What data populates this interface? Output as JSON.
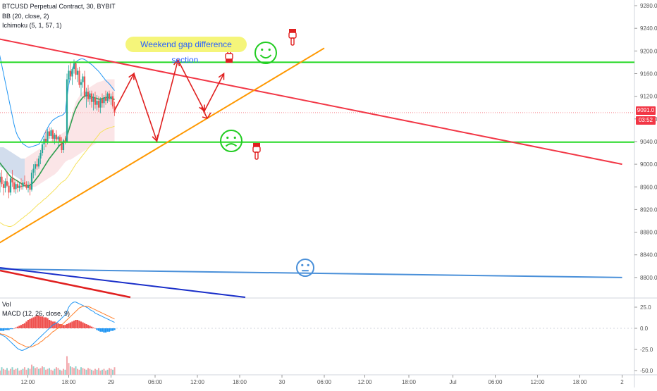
{
  "main_chart": {
    "legend": [
      {
        "label": "BTCUSD Perpetual Contract, 30, BYBIT"
      },
      {
        "label": "BB (20, close, 2)"
      },
      {
        "label": "Ichimoku (5, 1, 57, 1)"
      }
    ],
    "annotation": "Weekend gap difference section.",
    "current_price_label": "9091.0",
    "countdown_label": "03:52"
  },
  "sub_chart": {
    "legend": [
      {
        "label": "Vol"
      },
      {
        "label": "MACD (12, 26, close, 9)"
      }
    ]
  },
  "chart_data": [
    {
      "type": "candlestick",
      "symbol": "BTCUSD Perpetual Contract",
      "interval": "30",
      "exchange": "BYBIT",
      "yaxis_ticks": [
        9280.0,
        9240.0,
        9200.0,
        9160.0,
        9120.0,
        9080.0,
        9040.0,
        9000.0,
        8960.0,
        8920.0,
        8880.0,
        8840.0,
        8800.0
      ],
      "yaxis_tick_labels": [
        "9280.0",
        "9240.0",
        "9200.0",
        "9160.0",
        "9120.0",
        "9080.0",
        "9040.0",
        "9000.0",
        "8960.0",
        "8920.0",
        "8880.0",
        "8840.0",
        "8800.0"
      ],
      "ylim": [
        8765,
        9290
      ],
      "xaxis_tick_labels": [
        "12:00",
        "18:00",
        "29",
        "06:00",
        "12:00",
        "18:00",
        "30",
        "06:00",
        "12:00",
        "18:00",
        "Jul",
        "06:00",
        "12:00",
        "18:00",
        "2"
      ],
      "xaxis_tick_index": [
        17.8,
        41,
        65,
        90,
        114,
        138,
        162,
        186,
        209,
        234,
        259,
        283,
        307,
        331,
        355
      ],
      "current_price": 9091.0,
      "candles_ohlc": [
        [
          9006,
          9020,
          8975,
          8990
        ],
        [
          8990,
          9000,
          8955,
          8968
        ],
        [
          8968,
          8985,
          8950,
          8978
        ],
        [
          8978,
          8990,
          8960,
          8965
        ],
        [
          8965,
          8972,
          8945,
          8958
        ],
        [
          8958,
          8975,
          8950,
          8970
        ],
        [
          8970,
          8985,
          8960,
          8962
        ],
        [
          8962,
          8968,
          8940,
          8950
        ],
        [
          8950,
          8980,
          8945,
          8975
        ],
        [
          8975,
          8990,
          8960,
          8968
        ],
        [
          8968,
          8975,
          8950,
          8956
        ],
        [
          8956,
          8970,
          8948,
          8965
        ],
        [
          8965,
          8972,
          8950,
          8958
        ],
        [
          8958,
          8968,
          8952,
          8962
        ],
        [
          8962,
          8975,
          8955,
          8960
        ],
        [
          8960,
          8972,
          8955,
          8968
        ],
        [
          8968,
          8980,
          8960,
          8965
        ],
        [
          8965,
          8970,
          8955,
          8958
        ],
        [
          8958,
          8970,
          8950,
          8962
        ],
        [
          8962,
          8968,
          8945,
          8955
        ],
        [
          8955,
          8990,
          8952,
          8985
        ],
        [
          8985,
          9000,
          8975,
          8992
        ],
        [
          8992,
          9005,
          8980,
          9000
        ],
        [
          9000,
          9010,
          8990,
          8996
        ],
        [
          8996,
          9015,
          8992,
          9010
        ],
        [
          9010,
          9025,
          9000,
          9020
        ],
        [
          9020,
          9040,
          9015,
          9035
        ],
        [
          9035,
          9050,
          9025,
          9045
        ],
        [
          9045,
          9060,
          9030,
          9040
        ],
        [
          9040,
          9062,
          9035,
          9058
        ],
        [
          9058,
          9065,
          9045,
          9050
        ],
        [
          9050,
          9065,
          9045,
          9060
        ],
        [
          9060,
          9062,
          9040,
          9045
        ],
        [
          9045,
          9055,
          9035,
          9052
        ],
        [
          9052,
          9060,
          9040,
          9044
        ],
        [
          9044,
          9050,
          9030,
          9048
        ],
        [
          9048,
          9052,
          9038,
          9040
        ],
        [
          9040,
          9048,
          9020,
          9025
        ],
        [
          9025,
          9045,
          9020,
          9042
        ],
        [
          9042,
          9050,
          9035,
          9040
        ],
        [
          9040,
          9160,
          9038,
          9150
        ],
        [
          9150,
          9175,
          9140,
          9165
        ],
        [
          9165,
          9180,
          9148,
          9155
        ],
        [
          9155,
          9170,
          9140,
          9168
        ],
        [
          9168,
          9185,
          9160,
          9178
        ],
        [
          9178,
          9182,
          9150,
          9158
        ],
        [
          9158,
          9170,
          9145,
          9165
        ],
        [
          9165,
          9172,
          9135,
          9140
        ],
        [
          9140,
          9150,
          9120,
          9145
        ],
        [
          9145,
          9160,
          9135,
          9155
        ],
        [
          9155,
          9165,
          9115,
          9120
        ],
        [
          9120,
          9135,
          9100,
          9128
        ],
        [
          9128,
          9140,
          9110,
          9115
        ],
        [
          9115,
          9130,
          9105,
          9125
        ],
        [
          9125,
          9130,
          9100,
          9110
        ],
        [
          9110,
          9125,
          9095,
          9118
        ],
        [
          9118,
          9128,
          9098,
          9105
        ],
        [
          9105,
          9122,
          9095,
          9112
        ],
        [
          9112,
          9120,
          9092,
          9100
        ],
        [
          9100,
          9118,
          9090,
          9115
        ],
        [
          9115,
          9125,
          9100,
          9108
        ],
        [
          9108,
          9122,
          9100,
          9118
        ],
        [
          9118,
          9130,
          9105,
          9112
        ],
        [
          9112,
          9128,
          9108,
          9125
        ],
        [
          9125,
          9130,
          9110,
          9115
        ],
        [
          9115,
          9125,
          9105,
          9120
        ],
        [
          9120,
          9128,
          9098,
          9102
        ],
        [
          9102,
          9110,
          9085,
          9091
        ]
      ],
      "bollinger_upper": [
        9220,
        9205,
        9190,
        9175,
        9160,
        9145,
        9130,
        9115,
        9100,
        9085,
        9070,
        9058,
        9050,
        9045,
        9040,
        9036,
        9034,
        9032,
        9030,
        9030,
        9031,
        9032,
        9033,
        9034,
        9035,
        9040,
        9045,
        9052,
        9058,
        9064,
        9070,
        9074,
        9078,
        9080,
        9082,
        9084,
        9085,
        9086,
        9088,
        9092,
        9118,
        9140,
        9155,
        9168,
        9176,
        9180,
        9183,
        9185,
        9186,
        9186,
        9185,
        9183,
        9180,
        9178,
        9176,
        9173,
        9170,
        9167,
        9164,
        9160,
        9156,
        9152,
        9148,
        9145,
        9142,
        9138,
        9134,
        9130
      ],
      "bollinger_middle": [
        9010,
        9006,
        9002,
        8998,
        8994,
        8990,
        8986,
        8982,
        8978,
        8976,
        8974,
        8972,
        8970,
        8968,
        8966,
        8964,
        8962,
        8962,
        8962,
        8963,
        8965,
        8968,
        8972,
        8976,
        8980,
        8985,
        8990,
        8995,
        9000,
        9005,
        9010,
        9014,
        9018,
        9022,
        9026,
        9030,
        9034,
        9036,
        9038,
        9040,
        9050,
        9060,
        9070,
        9080,
        9090,
        9098,
        9104,
        9110,
        9114,
        9118,
        9120,
        9121,
        9121,
        9120,
        9119,
        9118,
        9117,
        9116,
        9115,
        9115,
        9116,
        9117,
        9118,
        9118,
        9118,
        9117,
        9116,
        9114
      ],
      "tenkan_line": [
        8905,
        8900,
        8897,
        8895,
        8893,
        8892,
        8891,
        8890,
        8890,
        8891,
        8893,
        8895,
        8898,
        8900,
        8903,
        8905,
        8908,
        8910,
        8913,
        8915,
        8918,
        8921,
        8924,
        8927,
        8930,
        8932,
        8935,
        8938,
        8940,
        8943,
        8946,
        8949,
        8952,
        8955,
        8958,
        8962,
        8965,
        8968,
        8970,
        8972,
        8976,
        8980,
        8985,
        8990,
        8995,
        9000,
        9004,
        9008,
        9012,
        9016,
        9020,
        9024,
        9028,
        9032,
        9036,
        9040,
        9044,
        9048,
        9052,
        9056,
        9058,
        9060,
        9062,
        9063,
        9064,
        9065,
        9066,
        9067
      ],
      "ichimoku_cloud_upper": [
        9030,
        9030,
        9030,
        9030,
        9030,
        9028,
        9026,
        9024,
        9022,
        9020,
        9018,
        9016,
        9014,
        9012,
        9010,
        9010,
        9010,
        9012,
        9014,
        9016,
        9018,
        9020,
        9022,
        9024,
        9026,
        9028,
        9030,
        9032,
        9035,
        9038,
        9040,
        9042,
        9044,
        9046,
        9048,
        9050,
        9052,
        9054,
        9056,
        9058,
        9060,
        9070,
        9080,
        9090,
        9100,
        9110,
        9115,
        9120,
        9125,
        9128,
        9130,
        9132,
        9134,
        9136,
        9138,
        9140,
        9142,
        9144,
        9145,
        9146,
        9147,
        9148,
        9149,
        9150,
        9150,
        9150,
        9150,
        9150
      ],
      "ichimoku_cloud_lower": [
        9000,
        8998,
        8996,
        8994,
        8992,
        8990,
        8988,
        8986,
        8984,
        8982,
        8980,
        8978,
        8976,
        8974,
        8972,
        8970,
        8968,
        8966,
        8964,
        8962,
        8960,
        8960,
        8960,
        8962,
        8964,
        8966,
        8968,
        8970,
        8972,
        8974,
        8976,
        8978,
        8980,
        8982,
        8985,
        8988,
        8992,
        8996,
        9000,
        9004,
        9006,
        9008,
        9008,
        9010,
        9012,
        9014,
        9016,
        9018,
        9020,
        9022,
        9024,
        9026,
        9028,
        9030,
        9032,
        9034,
        9036,
        9038,
        9040,
        9040,
        9040,
        9040,
        9040,
        9040,
        9040,
        9040,
        9040,
        9040
      ],
      "horizontal_levels": [
        9180,
        9039
      ],
      "trend_lines": [
        {
          "name": "descending resistance",
          "color": "#f23645",
          "from": [
            0,
            9222
          ],
          "to": [
            355,
            9000
          ]
        },
        {
          "name": "ascending support",
          "color": "#ff9800",
          "from": [
            0,
            8858
          ],
          "to": [
            186,
            9205
          ]
        },
        {
          "name": "long-term descending",
          "color": "#4a90d9",
          "from": [
            0,
            8815
          ],
          "to": [
            355,
            8800
          ]
        }
      ],
      "projection_path": [
        [
          67,
          9095
        ],
        [
          78,
          9160
        ],
        [
          91,
          9041
        ],
        [
          103,
          9184
        ],
        [
          118,
          9094
        ],
        [
          129,
          9160
        ]
      ]
    },
    {
      "type": "macd",
      "yaxis_tick_labels": [
        "25.0",
        "0.0",
        "-25.0",
        "-50.0"
      ],
      "ylim": [
        -55,
        35
      ],
      "macd_line": [
        -5,
        -6,
        -7,
        -8,
        -9,
        -10,
        -12,
        -14,
        -16,
        -18,
        -20,
        -22,
        -24,
        -25,
        -26,
        -26,
        -25,
        -24,
        -23,
        -22,
        -20,
        -18,
        -16,
        -14,
        -12,
        -10,
        -8,
        -6,
        -4,
        -2,
        0,
        2,
        4,
        5,
        6,
        8,
        10,
        12,
        14,
        16,
        20,
        25,
        28,
        30,
        31,
        31,
        30,
        29,
        28,
        27,
        26,
        25,
        24,
        22,
        21,
        20,
        18,
        17,
        16,
        15,
        14,
        13,
        12,
        11,
        10,
        9,
        8,
        7
      ],
      "signal_line": [
        -5,
        -5,
        -6,
        -7,
        -7,
        -8,
        -9,
        -10,
        -11,
        -12,
        -14,
        -15,
        -17,
        -18,
        -19,
        -20,
        -21,
        -22,
        -22,
        -22,
        -22,
        -21,
        -20,
        -19,
        -18,
        -16,
        -15,
        -13,
        -11,
        -10,
        -8,
        -6,
        -4,
        -3,
        -1,
        0,
        2,
        4,
        6,
        8,
        10,
        12,
        14,
        16,
        18,
        20,
        22,
        24,
        25,
        26,
        26,
        26,
        26,
        25,
        24,
        23,
        22,
        21,
        20,
        19,
        18,
        17,
        16,
        15,
        14,
        13,
        12,
        11
      ],
      "histogram": [
        -2,
        -2,
        -3,
        -3,
        -3,
        -2,
        -2,
        -2,
        -1,
        -1,
        0,
        1,
        2,
        3,
        4,
        5,
        6,
        8,
        10,
        11,
        12,
        13,
        14,
        15,
        15,
        14,
        14,
        13,
        13,
        12,
        10,
        9,
        8,
        8,
        7,
        6,
        5,
        5,
        4,
        4,
        5,
        6,
        7,
        8,
        9,
        10,
        10,
        9,
        8,
        7,
        6,
        5,
        4,
        3,
        2,
        1,
        0,
        -2,
        -3,
        -4,
        -4,
        -5,
        -5,
        -4,
        -4,
        -3,
        -3,
        -2
      ],
      "volume": [
        6,
        8,
        5,
        9,
        7,
        6,
        8,
        5,
        7,
        9,
        6,
        7,
        8,
        5,
        6,
        7,
        9,
        6,
        8,
        7,
        12,
        10,
        8,
        9,
        7,
        8,
        10,
        9,
        6,
        7,
        8,
        6,
        5,
        7,
        9,
        8,
        6,
        5,
        7,
        6,
        22,
        14,
        10,
        9,
        8,
        10,
        7,
        6,
        9,
        8,
        7,
        6,
        8,
        7,
        6,
        5,
        7,
        6,
        8,
        5,
        6,
        7,
        5,
        6,
        8,
        7,
        6,
        9
      ]
    }
  ]
}
